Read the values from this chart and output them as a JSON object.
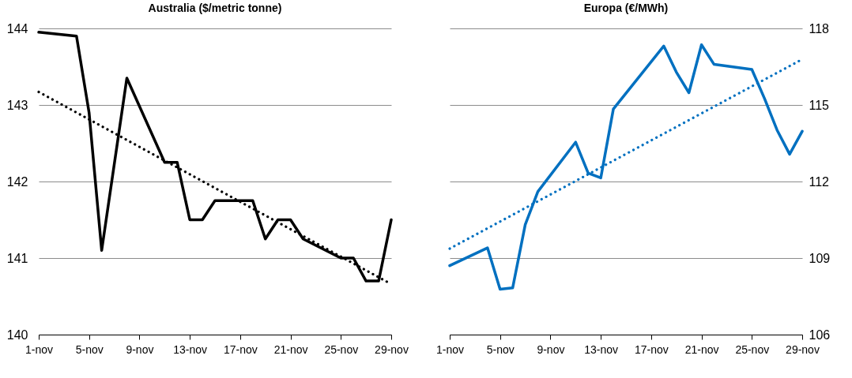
{
  "chart_data": [
    {
      "type": "line",
      "title": "Australia ($/metric tonne)",
      "x": [
        "--11-01",
        "--11-04",
        "--11-05",
        "--11-06",
        "--11-08",
        "--11-11",
        "--11-12",
        "--11-13",
        "--11-14",
        "--11-15",
        "--11-18",
        "--11-19",
        "--11-20",
        "--11-21",
        "--11-22",
        "--11-25",
        "--11-26",
        "--11-27",
        "--11-28",
        "--11-29"
      ],
      "series": [
        {
          "color": "#000000",
          "values": [
            143.95,
            143.9,
            142.9,
            141.1,
            143.35,
            142.25,
            142.25,
            141.5,
            141.5,
            141.75,
            141.75,
            141.25,
            141.5,
            141.5,
            141.25,
            141.0,
            141.0,
            140.7,
            140.7,
            141.5
          ]
        },
        {
          "type": "line",
          "color": "#000000",
          "line_style": "dotted",
          "x": [
            "--11-01",
            "--11-29"
          ],
          "values": [
            143.17,
            140.66
          ]
        }
      ],
      "xlim": [
        "--11-01",
        "--11-29"
      ],
      "xticks": [
        {
          "value": "--11-01",
          "label": "1-nov"
        },
        {
          "value": "--11-05",
          "label": "5-nov"
        },
        {
          "value": "--11-09",
          "label": "9-nov"
        },
        {
          "value": "--11-13",
          "label": "13-nov"
        },
        {
          "value": "--11-17",
          "label": "17-nov"
        },
        {
          "value": "--11-21",
          "label": "21-nov"
        },
        {
          "value": "--11-25",
          "label": "25-nov"
        },
        {
          "value": "--11-29",
          "label": "29-nov"
        }
      ],
      "ylim": [
        140,
        144
      ],
      "yticks": [
        140,
        141,
        142,
        143,
        144
      ],
      "grid": "y"
    },
    {
      "type": "line",
      "title": "Europa (€/MWh)",
      "x": [
        "--11-01",
        "--11-04",
        "--11-05",
        "--11-06",
        "--11-07",
        "--11-08",
        "--11-11",
        "--11-12",
        "--11-13",
        "--11-14",
        "--11-18",
        "--11-19",
        "--11-20",
        "--11-21",
        "--11-22",
        "--11-25",
        "--11-26",
        "--11-27",
        "--11-28",
        "--11-29"
      ],
      "series": [
        {
          "color": "#0070c0",
          "axis": "y2",
          "values": [
            108.7,
            109.4,
            107.78,
            107.83,
            110.31,
            111.6,
            113.54,
            112.33,
            112.14,
            114.84,
            117.31,
            116.29,
            115.48,
            117.36,
            116.59,
            116.39,
            115.26,
            114.02,
            113.07,
            113.97
          ]
        },
        {
          "type": "line",
          "color": "#0070c0",
          "axis": "y2",
          "line_style": "dotted",
          "x": [
            "--11-01",
            "--11-29"
          ],
          "values": [
            109.37,
            116.79
          ]
        }
      ],
      "xlim": [
        "--11-01",
        "--11-29"
      ],
      "xticks": [
        {
          "value": "--11-01",
          "label": "1-nov"
        },
        {
          "value": "--11-05",
          "label": "5-nov"
        },
        {
          "value": "--11-09",
          "label": "9-nov"
        },
        {
          "value": "--11-13",
          "label": "13-nov"
        },
        {
          "value": "--11-17",
          "label": "17-nov"
        },
        {
          "value": "--11-21",
          "label": "21-nov"
        },
        {
          "value": "--11-25",
          "label": "25-nov"
        },
        {
          "value": "--11-29",
          "label": "29-nov"
        }
      ],
      "y2lim": [
        106,
        118
      ],
      "y2ticks": [
        106,
        109,
        112,
        115,
        118
      ],
      "grid": "y"
    }
  ]
}
